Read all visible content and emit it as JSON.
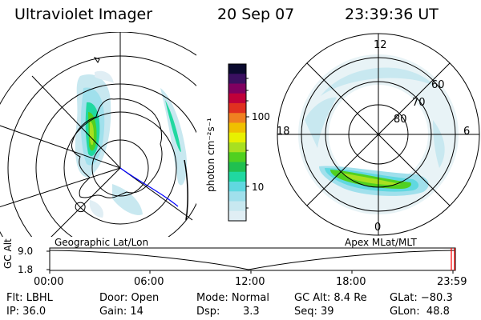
{
  "header": {
    "instrument": "Ultraviolet Imager",
    "date": "20 Sep 07",
    "time": "23:39:36 UT"
  },
  "colorbar": {
    "unit_label": "photon cm⁻²s⁻¹",
    "ticks": [
      "100",
      "10"
    ],
    "colors": [
      "#0a0a2e",
      "#3a1060",
      "#800060",
      "#c0003a",
      "#e03020",
      "#f08020",
      "#f0c000",
      "#e8f000",
      "#a8e020",
      "#50d020",
      "#20c050",
      "#20d8a0",
      "#60d8e0",
      "#a0e0ec",
      "#c8e8f0",
      "#e0eef4"
    ]
  },
  "left_map": {
    "caption": "Geographic Lat/Lon"
  },
  "right_map": {
    "caption": "Apex MLat/MLT",
    "mlt_labels": {
      "top": "12",
      "left": "18",
      "right": "6",
      "bottom": "0"
    },
    "lat_labels": [
      "60",
      "70",
      "80"
    ]
  },
  "timeline": {
    "ylabel": "GC Alt",
    "yticks": [
      "9.0",
      "1.8"
    ],
    "xticks": [
      "00:00",
      "06:00",
      "12:00",
      "18:00",
      "23:59"
    ]
  },
  "status": {
    "row1": {
      "flt": "Flt: LBHL",
      "door": "Door: Open",
      "mode": "Mode: Normal",
      "gcalt": "GC Alt: 8.4 Re",
      "glat": "GLat: −80.3"
    },
    "row2": {
      "ip": "IP: 36.0",
      "gain": "Gain: 14",
      "dsp_label": "Dsp:",
      "dsp_value": "3.3",
      "seq": "Seq: 39",
      "glon": "GLon:  48.8"
    }
  }
}
